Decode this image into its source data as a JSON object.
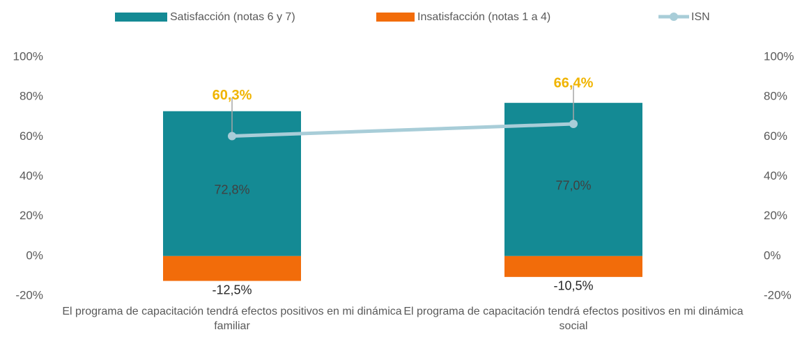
{
  "chart_data": {
    "type": "bar",
    "categories": [
      "El programa de capacitación tendrá efectos positivos en mi dinámica familiar",
      "El programa de capacitación tendrá efectos positivos en mi dinámica social"
    ],
    "series": [
      {
        "name": "Satisfacción (notas 6 y 7)",
        "color": "#148a94",
        "values": [
          72.8,
          77.0
        ],
        "value_labels": [
          "72,8%",
          "77,0%"
        ]
      },
      {
        "name": "Insatisfacción (notas 1 a 4)",
        "color": "#f26c0a",
        "values": [
          -12.5,
          -10.5
        ],
        "value_labels": [
          "-12,5%",
          "-10,5%"
        ]
      },
      {
        "name": "ISN",
        "type": "line",
        "axis": "y2",
        "color": "#a8cdd8",
        "label_color": "#f0b400",
        "values": [
          60.3,
          66.4
        ],
        "value_labels": [
          "60,3%",
          "66,4%"
        ]
      }
    ],
    "ylim": [
      -20,
      100
    ],
    "yticks": [
      {
        "value": -20,
        "label": "-20%"
      },
      {
        "value": 0,
        "label": "0%"
      },
      {
        "value": 20,
        "label": "20%"
      },
      {
        "value": 40,
        "label": "40%"
      },
      {
        "value": 60,
        "label": "60%"
      },
      {
        "value": 80,
        "label": "80%"
      },
      {
        "value": 100,
        "label": "100%"
      }
    ],
    "y2lim": [
      -20,
      100
    ],
    "y2ticks": [
      {
        "value": -20,
        "label": "-20%"
      },
      {
        "value": 0,
        "label": "0%"
      },
      {
        "value": 20,
        "label": "20%"
      },
      {
        "value": 40,
        "label": "40%"
      },
      {
        "value": 60,
        "label": "60%"
      },
      {
        "value": 80,
        "label": "80%"
      },
      {
        "value": 100,
        "label": "100%"
      }
    ],
    "legend": "top"
  }
}
